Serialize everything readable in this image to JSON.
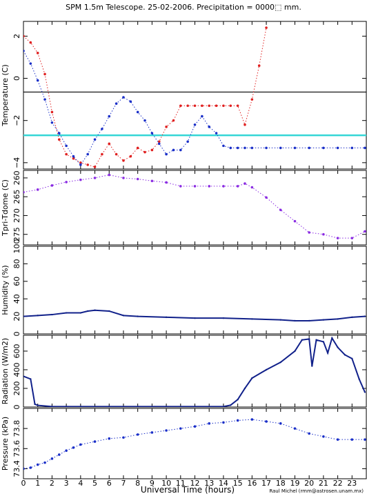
{
  "title": "SPM 1.5m Telescope. 25-02-2006. Precipitation = 0000⬚ mm.",
  "xlabel": "Universal Time (hours)",
  "credit": "Raul Michel (rmm@astrosen.unam.mx)",
  "colors": {
    "red": "#e02020",
    "blue": "#1a2fc8",
    "navy": "#10208a",
    "purple": "#8a2be2",
    "cyan": "#33d6d6",
    "axis": "#000000"
  },
  "chart_data": [
    {
      "type": "scatter",
      "panel": "temperature",
      "ylabel": "Temperature (C)",
      "ylim": [
        -4.3,
        2.7
      ],
      "x_ticks": [
        0,
        1,
        2,
        3,
        4,
        5,
        6,
        7,
        8,
        9,
        10,
        11,
        12,
        13,
        14,
        15,
        16,
        17,
        18,
        19,
        20,
        21,
        22,
        23
      ],
      "y_ticks": [
        -4,
        -2,
        0,
        2
      ],
      "y_tick_labels": [
        "−4",
        "−2",
        "0",
        "2"
      ],
      "reference_lines": [
        {
          "y": -0.65,
          "color": "black"
        },
        {
          "y": -2.7,
          "color": "cyan"
        }
      ],
      "series": [
        {
          "color": "red",
          "x": [
            0,
            0.5,
            1,
            1.5,
            2,
            2.5,
            3,
            3.5,
            4,
            4.5,
            5,
            5.5,
            6,
            6.5,
            7,
            7.5,
            8,
            8.5,
            9,
            9.5,
            10,
            10.5,
            11,
            11.5,
            12,
            12.5,
            13,
            13.5,
            14,
            14.5,
            15,
            15.5,
            16,
            16.5,
            17
          ],
          "y": [
            2.0,
            1.7,
            1.2,
            0.2,
            -1.6,
            -2.9,
            -3.6,
            -3.8,
            -4.0,
            -4.1,
            -4.2,
            -3.6,
            -3.1,
            -3.6,
            -3.9,
            -3.7,
            -3.3,
            -3.5,
            -3.4,
            -3.0,
            -2.3,
            -2.0,
            -1.3,
            -1.3,
            -1.3,
            -1.3,
            -1.3,
            -1.3,
            -1.3,
            -1.3,
            -1.3,
            -2.2,
            -1.0,
            0.6,
            2.4
          ]
        },
        {
          "color": "blue",
          "x": [
            0,
            0.5,
            1,
            1.5,
            2,
            2.5,
            3,
            3.5,
            4,
            4.5,
            5,
            5.5,
            6,
            6.5,
            7,
            7.5,
            8,
            8.5,
            9,
            9.5,
            10,
            10.5,
            11,
            11.5,
            12,
            12.5,
            13,
            13.5,
            14,
            14.5,
            15,
            15.5,
            16,
            17,
            18,
            19,
            20,
            21,
            22,
            23,
            23.9
          ],
          "y": [
            1.3,
            0.7,
            -0.1,
            -1.0,
            -2.1,
            -2.6,
            -3.2,
            -3.7,
            -4.1,
            -3.6,
            -2.9,
            -2.4,
            -1.8,
            -1.2,
            -0.9,
            -1.1,
            -1.6,
            -2.0,
            -2.6,
            -3.1,
            -3.6,
            -3.4,
            -3.4,
            -3.0,
            -2.2,
            -1.8,
            -2.3,
            -2.6,
            -3.2,
            -3.3,
            -3.3,
            -3.3,
            -3.3,
            -3.3,
            -3.3,
            -3.3,
            -3.3,
            -3.3,
            -3.3,
            -3.3,
            -3.3
          ]
        }
      ]
    },
    {
      "type": "scatter",
      "panel": "tpri-tdome",
      "ylabel": "Tpri-Tdome (C)",
      "ylim": [
        -277.8,
        -258.0
      ],
      "y_ticks": [
        -275,
        -270,
        -265,
        -260
      ],
      "y_tick_labels": [
        "275",
        "270",
        "265",
        "260"
      ],
      "series": [
        {
          "color": "purple",
          "x": [
            0,
            1,
            2,
            3,
            4,
            5,
            6,
            7,
            8,
            9,
            10,
            11,
            12,
            13,
            14,
            15,
            15.5,
            16,
            17,
            18,
            19,
            20,
            21,
            22,
            23,
            23.9
          ],
          "y": [
            -263.8,
            -263.1,
            -262.0,
            -261.1,
            -260.5,
            -260.0,
            -259.2,
            -260.0,
            -260.3,
            -260.8,
            -261.2,
            -262.2,
            -262.2,
            -262.2,
            -262.2,
            -262.2,
            -261.5,
            -262.5,
            -265.2,
            -268.5,
            -271.5,
            -274.5,
            -275.0,
            -276.0,
            -276.0,
            -274.2
          ]
        }
      ]
    },
    {
      "type": "line",
      "panel": "humidity",
      "ylabel": "Humidity (%)",
      "ylim": [
        0,
        100
      ],
      "y_ticks": [
        0,
        20,
        40,
        60,
        80,
        100
      ],
      "y_tick_labels": [
        "0",
        "20",
        "40",
        "60",
        "80",
        "100"
      ],
      "series": [
        {
          "color": "navy",
          "x": [
            0,
            1,
            2,
            3,
            4,
            4.5,
            5,
            6,
            7,
            8,
            10,
            12,
            14,
            16,
            18,
            19,
            20,
            21,
            22,
            23,
            23.9
          ],
          "y": [
            20,
            21,
            22,
            24,
            24,
            26,
            27,
            26,
            21,
            20,
            19,
            18,
            18,
            17,
            16,
            15,
            15,
            16,
            17,
            19,
            20
          ]
        }
      ]
    },
    {
      "type": "line",
      "panel": "radiation",
      "ylabel": "Radiation (W/m2)",
      "ylim": [
        0,
        770
      ],
      "y_ticks": [
        0,
        200,
        400,
        600
      ],
      "y_tick_labels": [
        "0",
        "200",
        "400",
        "600"
      ],
      "series": [
        {
          "color": "navy",
          "x": [
            0,
            0.5,
            0.8,
            1,
            2,
            3,
            4,
            6,
            8,
            10,
            12,
            14,
            14.5,
            15,
            15.5,
            16,
            17,
            18,
            19,
            19.5,
            20,
            20.2,
            20.5,
            21,
            21.3,
            21.6,
            22,
            22.5,
            23,
            23.5,
            23.9
          ],
          "y": [
            330,
            300,
            30,
            18,
            5,
            5,
            5,
            5,
            5,
            5,
            5,
            5,
            20,
            80,
            200,
            310,
            400,
            480,
            600,
            720,
            730,
            440,
            720,
            700,
            580,
            740,
            640,
            560,
            520,
            300,
            160
          ]
        }
      ]
    },
    {
      "type": "scatter",
      "panel": "pressure",
      "ylabel": "Pressure (kPa)",
      "ylim": [
        73.3,
        74.0
      ],
      "y_ticks": [
        73.4,
        73.6,
        73.8
      ],
      "y_tick_labels": [
        "73.4",
        "73.6",
        "73.8"
      ],
      "series": [
        {
          "color": "blue",
          "x": [
            0,
            0.5,
            1,
            1.5,
            2,
            2.5,
            3,
            3.5,
            4,
            5,
            6,
            7,
            8,
            9,
            10,
            11,
            12,
            13,
            14,
            15,
            16,
            17,
            18,
            19,
            20,
            21,
            22,
            23,
            23.9
          ],
          "y": [
            73.4,
            73.41,
            73.44,
            73.46,
            73.5,
            73.54,
            73.58,
            73.61,
            73.64,
            73.67,
            73.7,
            73.71,
            73.74,
            73.76,
            73.78,
            73.8,
            73.82,
            73.85,
            73.86,
            73.88,
            73.89,
            73.87,
            73.85,
            73.8,
            73.75,
            73.72,
            73.69,
            73.69,
            73.69
          ]
        }
      ]
    }
  ]
}
